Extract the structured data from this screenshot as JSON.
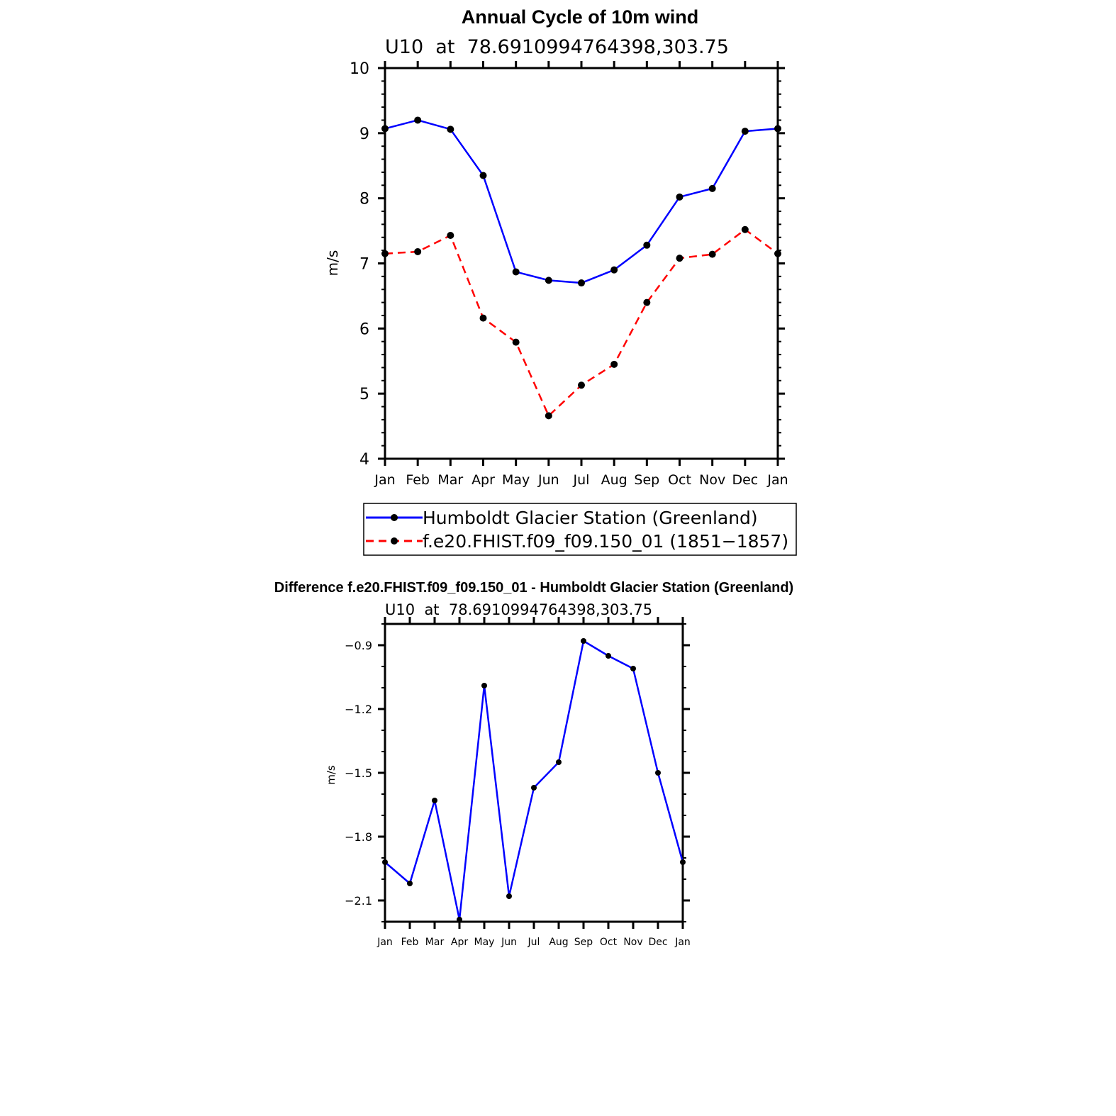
{
  "chart_data": [
    {
      "type": "line",
      "title": "Annual Cycle of 10m wind",
      "subtitle": "U10  at  78.6910994764398,303.75",
      "xlabel": "",
      "ylabel": "m/s",
      "ylim": [
        4,
        10
      ],
      "yticks": [
        4,
        5,
        6,
        7,
        8,
        9,
        10
      ],
      "ytick_labels": [
        "4",
        "5",
        "6",
        "7",
        "8",
        "9",
        "10"
      ],
      "categories": [
        "Jan",
        "Feb",
        "Mar",
        "Apr",
        "May",
        "Jun",
        "Jul",
        "Aug",
        "Sep",
        "Oct",
        "Nov",
        "Dec",
        "Jan"
      ],
      "series": [
        {
          "name": "Humboldt Glacier Station (Greenland)",
          "color": "#0000ff",
          "dash": "solid",
          "values": [
            9.07,
            9.2,
            9.06,
            8.35,
            6.87,
            6.74,
            6.7,
            6.9,
            7.28,
            8.02,
            8.15,
            9.03,
            9.07
          ]
        },
        {
          "name": "f.e20.FHIST.f09_f09.150_01 (1851−1857)",
          "color": "#ff0000",
          "dash": "dashed",
          "values": [
            7.15,
            7.18,
            7.43,
            6.16,
            5.79,
            4.66,
            5.13,
            5.45,
            6.4,
            7.08,
            7.14,
            7.52,
            7.15
          ]
        }
      ],
      "legend": "below"
    },
    {
      "type": "line",
      "title": "Difference f.e20.FHIST.f09_f09.150_01 - Humboldt Glacier Station (Greenland)",
      "subtitle": "U10  at  78.6910994764398,303.75",
      "xlabel": "",
      "ylabel": "m/s",
      "ylim": [
        -2.2,
        -0.8
      ],
      "yticks": [
        -2.1,
        -1.8,
        -1.5,
        -1.2,
        -0.9
      ],
      "ytick_labels": [
        "−2.1",
        "−1.8",
        "−1.5",
        "−1.2",
        "−0.9"
      ],
      "categories": [
        "Jan",
        "Feb",
        "Mar",
        "Apr",
        "May",
        "Jun",
        "Jul",
        "Aug",
        "Sep",
        "Oct",
        "Nov",
        "Dec",
        "Jan"
      ],
      "series": [
        {
          "name": "Difference",
          "color": "#0000ff",
          "dash": "solid",
          "values": [
            -1.92,
            -2.02,
            -1.63,
            -2.19,
            -1.09,
            -2.08,
            -1.57,
            -1.45,
            -0.88,
            -0.95,
            -1.01,
            -1.5,
            -1.92
          ]
        }
      ]
    }
  ]
}
